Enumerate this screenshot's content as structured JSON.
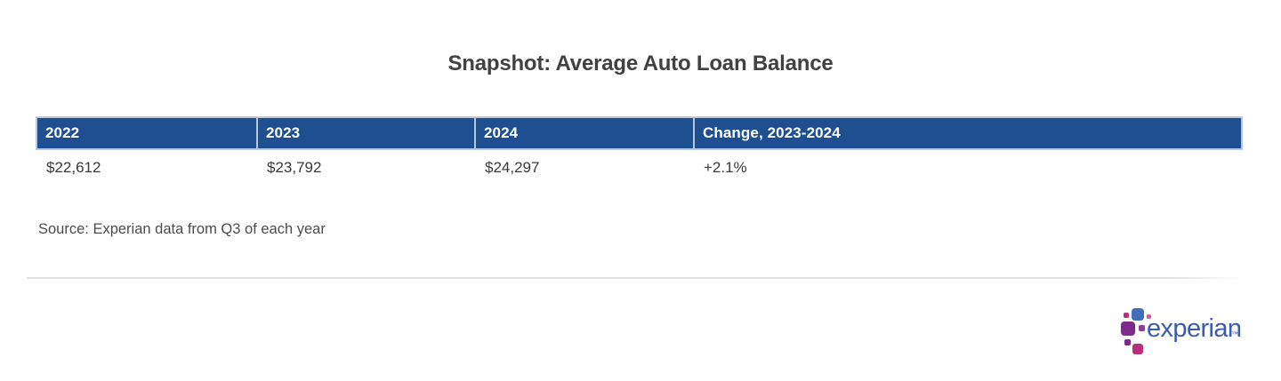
{
  "page": {
    "title": "Snapshot: Average Auto Loan Balance",
    "source_note": "Source: Experian data from Q3 of each year"
  },
  "table": {
    "header_bg_color": "#1d4f91",
    "header_text_color": "#ffffff",
    "columns": [
      {
        "header": "2022",
        "value": "$22,612"
      },
      {
        "header": "2023",
        "value": "$23,792"
      },
      {
        "header": "2024",
        "value": "$24,297"
      },
      {
        "header": "Change, 2023-2024",
        "value": "+2.1%"
      }
    ]
  },
  "chart_data": {
    "type": "table",
    "title": "Snapshot: Average Auto Loan Balance",
    "columns": [
      "2022",
      "2023",
      "2024",
      "Change, 2023-2024"
    ],
    "rows": [
      [
        "$22,612",
        "$23,792",
        "$24,297",
        "+2.1%"
      ]
    ],
    "values_numeric": {
      "2022": 22612,
      "2023": 23792,
      "2024": 24297,
      "change_2023_2024_pct": 2.1
    },
    "source": "Source: Experian data from Q3 of each year"
  },
  "brand": {
    "logo_text": "experian",
    "trademark": "™",
    "wordmark_color": "#3b5caa",
    "dot_colors": [
      "#426db8",
      "#7d2a8b",
      "#ba2f7d",
      "#d05f9f",
      "#8c3f97"
    ]
  }
}
